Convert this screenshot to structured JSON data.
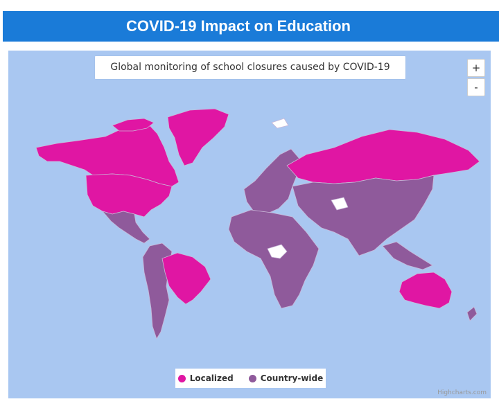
{
  "header": {
    "title": "COVID-19 Impact on Education"
  },
  "map": {
    "subtitle": "Global monitoring of school closures caused by COVID-19",
    "zoom_in_label": "+",
    "zoom_out_label": "-",
    "credits": "Highcharts.com",
    "colors": {
      "ocean": "#a9c7f1",
      "localized": "#e016a3",
      "country_wide": "#8f5a9b",
      "no_data": "#ffffff",
      "border": "#c9b8d8"
    }
  },
  "legend": {
    "items": [
      {
        "label": "Localized",
        "color": "#e016a3"
      },
      {
        "label": "Country-wide",
        "color": "#8f5a9b"
      }
    ]
  }
}
